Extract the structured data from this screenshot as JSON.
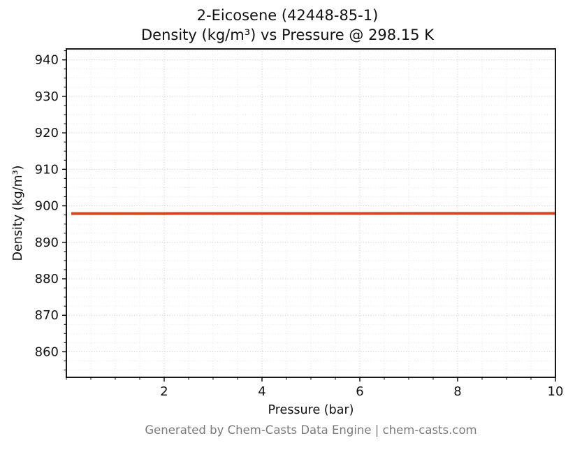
{
  "title": {
    "line1": "2-Eicosene (42448-85-1)",
    "line2": "Density (kg/m³) vs Pressure @ 298.15 K"
  },
  "footer": {
    "text": "Generated by Chem-Casts Data Engine | chem-casts.com"
  },
  "chart_data": {
    "type": "line",
    "title": "2-Eicosene (42448-85-1)",
    "subtitle": "Density (kg/m³) vs Pressure @ 298.15 K",
    "xlabel": "Pressure (bar)",
    "ylabel": "Density (kg/m³)",
    "xlim": [
      0,
      10
    ],
    "ylim": [
      853,
      943
    ],
    "x_ticks": [
      2,
      4,
      6,
      8,
      10
    ],
    "y_ticks": [
      860,
      870,
      880,
      890,
      900,
      910,
      920,
      930,
      940
    ],
    "x_minor_step": 0.5,
    "y_minor_step": 2.5,
    "grid": true,
    "grid_major_color": "#c9c9c9",
    "grid_minor_color": "#e2e2e2",
    "axis_color": "#000000",
    "series": [
      {
        "name": "Density",
        "color": "#cf4a22",
        "line_width": 4,
        "x": [
          0.1,
          1,
          2,
          3,
          4,
          5,
          6,
          7,
          8,
          9,
          10
        ],
        "y": [
          897.88,
          897.89,
          897.89,
          897.9,
          897.9,
          897.91,
          897.91,
          897.92,
          897.92,
          897.93,
          897.93
        ]
      }
    ]
  }
}
